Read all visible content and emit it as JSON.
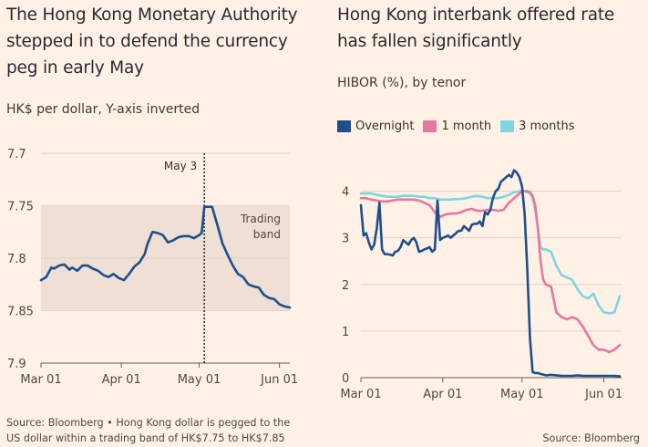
{
  "colors": {
    "background": "#fff1e5",
    "band": "#efdfd4",
    "grid": "#e0d4ca",
    "axis": "#66605c",
    "overnight": "#1e4f8c",
    "one_month": "#e3799e",
    "three_months": "#7cd6e2"
  },
  "left": {
    "title": "The Hong Kong Monetary Authority stepped in to defend the currency peg in early May",
    "subtitle": "HK$ per dollar, Y-axis inverted",
    "footnote": "Source: Bloomberg • Hong Kong dollar is pegged to the US dollar within a trading band of HK$7.75 to HK$7.85"
  },
  "right": {
    "title": "Hong Kong interbank offered rate has fallen significantly",
    "subtitle": "HIBOR (%), by tenor",
    "source": "Source: Bloomberg"
  },
  "chart_data": [
    {
      "type": "line",
      "title": "The Hong Kong Monetary Authority stepped in to defend the currency peg in early May",
      "subtitle": "HK$ per dollar, Y-axis inverted",
      "inverted_y": true,
      "ylim": [
        7.7,
        7.9
      ],
      "yticks": [
        7.7,
        7.75,
        7.8,
        7.85,
        7.9
      ],
      "xlim": [
        0,
        96
      ],
      "xticks": [
        {
          "x": 0,
          "label": "Mar 01"
        },
        {
          "x": 31,
          "label": "Apr 01"
        },
        {
          "x": 61,
          "label": "May 01"
        },
        {
          "x": 92,
          "label": "Jun 01"
        }
      ],
      "band": {
        "from": 7.75,
        "to": 7.85,
        "label_lines": [
          "Trading",
          "band"
        ]
      },
      "annotation": {
        "x": 63,
        "label": "May 3"
      },
      "series": [
        {
          "key": "hkd",
          "x": [
            0,
            2,
            4,
            5,
            7,
            9,
            11,
            12,
            14,
            16,
            18,
            20,
            22,
            24,
            26,
            28,
            30,
            32,
            34,
            36,
            38,
            40,
            41,
            43,
            45,
            47,
            49,
            51,
            53,
            55,
            57,
            59,
            61,
            62,
            63,
            64,
            66,
            68,
            70,
            72,
            74,
            76,
            78,
            80,
            82,
            84,
            86,
            88,
            90,
            92,
            94,
            96
          ],
          "values": [
            7.821,
            7.818,
            7.809,
            7.81,
            7.807,
            7.806,
            7.811,
            7.809,
            7.812,
            7.807,
            7.807,
            7.81,
            7.812,
            7.816,
            7.818,
            7.815,
            7.819,
            7.821,
            7.815,
            7.808,
            7.804,
            7.796,
            7.787,
            7.775,
            7.776,
            7.778,
            7.785,
            7.783,
            7.78,
            7.779,
            7.779,
            7.781,
            7.778,
            7.776,
            7.751,
            7.751,
            7.751,
            7.768,
            7.786,
            7.797,
            7.807,
            7.815,
            7.818,
            7.825,
            7.827,
            7.828,
            7.835,
            7.838,
            7.839,
            7.844,
            7.846,
            7.847
          ]
        }
      ]
    },
    {
      "type": "line",
      "title": "Hong Kong interbank offered rate has fallen significantly",
      "subtitle": "HIBOR (%), by tenor",
      "ylim": [
        0,
        4.5
      ],
      "yticks": [
        0,
        1,
        2,
        3,
        4
      ],
      "xlim": [
        0,
        98
      ],
      "xticks": [
        {
          "x": 0,
          "label": "Mar 01"
        },
        {
          "x": 31,
          "label": "Apr 01"
        },
        {
          "x": 61,
          "label": "May 01"
        },
        {
          "x": 92,
          "label": "Jun 01"
        }
      ],
      "series": [
        {
          "name": "Overnight",
          "key": "overnight",
          "x": [
            0,
            1,
            2,
            3,
            4,
            5,
            6,
            7,
            8,
            9,
            10,
            11,
            12,
            13,
            14,
            15,
            16,
            17,
            18,
            19,
            20,
            21,
            22,
            23,
            24,
            25,
            26,
            27,
            28,
            29,
            30,
            31,
            32,
            33,
            34,
            35,
            36,
            37,
            38,
            39,
            40,
            41,
            42,
            43,
            44,
            45,
            46,
            47,
            48,
            49,
            50,
            51,
            52,
            53,
            54,
            55,
            56,
            57,
            58,
            59,
            60,
            61,
            62,
            63,
            64,
            65,
            66,
            67,
            68,
            70,
            72,
            74,
            76,
            78,
            80,
            82,
            84,
            86,
            88,
            90,
            92,
            94,
            96,
            98
          ],
          "values": [
            3.7,
            3.05,
            3.1,
            2.9,
            2.75,
            2.85,
            3.2,
            3.75,
            2.75,
            2.65,
            2.65,
            2.64,
            2.62,
            2.7,
            2.72,
            2.8,
            2.95,
            2.9,
            2.85,
            2.95,
            3.0,
            2.9,
            2.7,
            2.72,
            2.75,
            2.77,
            2.8,
            2.7,
            2.75,
            3.8,
            2.95,
            3.0,
            3.02,
            3.05,
            3.0,
            3.05,
            3.1,
            3.15,
            3.15,
            3.25,
            3.2,
            3.15,
            3.28,
            3.3,
            3.3,
            3.35,
            3.25,
            3.55,
            3.5,
            3.6,
            3.85,
            4.0,
            4.05,
            4.2,
            4.25,
            4.3,
            4.35,
            4.3,
            4.45,
            4.4,
            4.3,
            4.1,
            3.5,
            2.3,
            0.85,
            0.12,
            0.1,
            0.1,
            0.08,
            0.05,
            0.06,
            0.05,
            0.04,
            0.04,
            0.04,
            0.05,
            0.04,
            0.04,
            0.04,
            0.04,
            0.04,
            0.04,
            0.04,
            0.03
          ]
        },
        {
          "name": "1 month",
          "key": "one_month",
          "x": [
            0,
            2,
            4,
            6,
            8,
            10,
            12,
            14,
            16,
            18,
            20,
            22,
            24,
            26,
            28,
            30,
            32,
            34,
            36,
            38,
            40,
            42,
            44,
            46,
            48,
            50,
            52,
            54,
            56,
            58,
            60,
            61,
            62,
            63,
            64,
            65,
            66,
            67,
            68,
            69,
            70,
            72,
            74,
            76,
            78,
            80,
            82,
            84,
            86,
            88,
            90,
            92,
            94,
            96,
            98
          ],
          "values": [
            3.85,
            3.85,
            3.82,
            3.8,
            3.78,
            3.78,
            3.8,
            3.82,
            3.82,
            3.82,
            3.82,
            3.8,
            3.75,
            3.7,
            3.55,
            3.45,
            3.5,
            3.52,
            3.52,
            3.55,
            3.6,
            3.62,
            3.58,
            3.58,
            3.6,
            3.6,
            3.58,
            3.6,
            3.75,
            3.85,
            3.95,
            4.0,
            4.0,
            4.0,
            3.98,
            3.9,
            3.7,
            3.2,
            2.5,
            2.1,
            2.0,
            1.95,
            1.4,
            1.3,
            1.25,
            1.3,
            1.25,
            1.1,
            0.9,
            0.7,
            0.6,
            0.6,
            0.55,
            0.6,
            0.7
          ]
        },
        {
          "name": "3 months",
          "key": "three_months",
          "x": [
            0,
            2,
            4,
            6,
            8,
            10,
            12,
            14,
            16,
            18,
            20,
            22,
            24,
            26,
            28,
            30,
            32,
            34,
            36,
            38,
            40,
            42,
            44,
            46,
            48,
            50,
            52,
            54,
            56,
            58,
            60,
            62,
            64,
            65,
            66,
            67,
            68,
            69,
            70,
            72,
            74,
            76,
            78,
            80,
            82,
            84,
            86,
            88,
            90,
            92,
            94,
            96,
            98
          ],
          "values": [
            3.95,
            3.95,
            3.95,
            3.92,
            3.9,
            3.88,
            3.88,
            3.88,
            3.9,
            3.9,
            3.9,
            3.88,
            3.88,
            3.85,
            3.85,
            3.82,
            3.82,
            3.82,
            3.83,
            3.83,
            3.85,
            3.88,
            3.9,
            3.88,
            3.85,
            3.85,
            3.85,
            3.88,
            3.92,
            3.98,
            4.0,
            4.0,
            3.95,
            3.85,
            3.6,
            3.2,
            2.8,
            2.75,
            2.75,
            2.7,
            2.4,
            2.2,
            2.15,
            2.1,
            1.9,
            1.75,
            1.7,
            1.8,
            1.55,
            1.4,
            1.38,
            1.4,
            1.75
          ]
        }
      ]
    }
  ]
}
